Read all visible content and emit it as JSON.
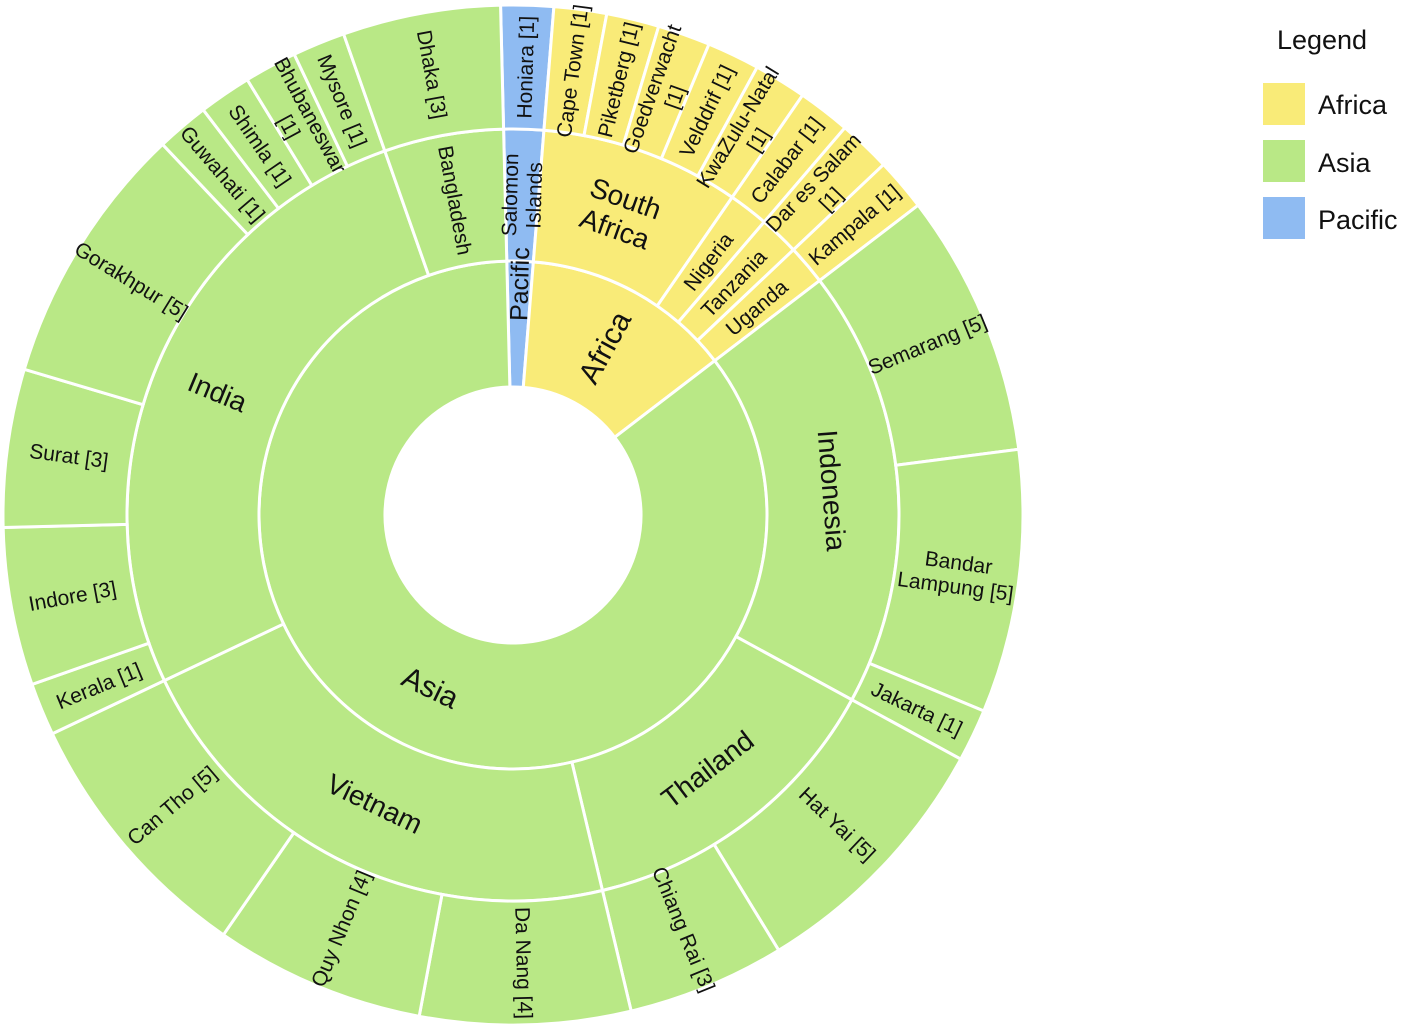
{
  "chart_data": {
    "type": "sunburst",
    "legend": {
      "title": "Legend",
      "placement": "top-right",
      "items": [
        {
          "name": "Africa",
          "color": "#f9eb78"
        },
        {
          "name": "Asia",
          "color": "#b9e886"
        },
        {
          "name": "Pacific",
          "color": "#8fbbf2"
        }
      ]
    },
    "colors": {
      "Africa": "#f9eb78",
      "Asia": "#b9e886",
      "Pacific": "#8fbbf2"
    },
    "regions": [
      {
        "name": "Pacific",
        "label": "Pacific",
        "countries": [
          {
            "name": "Salomon Islands",
            "label": "Salomon\nIslands",
            "cities": [
              {
                "name": "Honiara",
                "label": "Honiara [1]",
                "value": 1
              }
            ]
          }
        ]
      },
      {
        "name": "Africa",
        "label": "Africa",
        "countries": [
          {
            "name": "South Africa",
            "label": "South\nAfrica",
            "cities": [
              {
                "name": "Cape Town",
                "label": "Cape Town [1]",
                "value": 1
              },
              {
                "name": "Piketberg",
                "label": "Piketberg [1]",
                "value": 1
              },
              {
                "name": "Goedverwacht",
                "label": "Goedverwacht\n[1]",
                "value": 1
              },
              {
                "name": "Velddrif",
                "label": "Velddrif [1]",
                "value": 1
              },
              {
                "name": "KwaZulu-Natal",
                "label": "KwaZulu-Natal\n[1]",
                "value": 1
              }
            ]
          },
          {
            "name": "Nigeria",
            "label": "Nigeria",
            "cities": [
              {
                "name": "Calabar",
                "label": "Calabar [1]",
                "value": 1
              }
            ]
          },
          {
            "name": "Tanzania",
            "label": "Tanzania",
            "cities": [
              {
                "name": "Dar es Salam",
                "label": "Dar es Salam\n[1]",
                "value": 1
              }
            ]
          },
          {
            "name": "Uganda",
            "label": "Uganda",
            "cities": [
              {
                "name": "Kampala",
                "label": "Kampala [1]",
                "value": 1
              }
            ]
          }
        ]
      },
      {
        "name": "Asia",
        "label": "Asia",
        "countries": [
          {
            "name": "Indonesia",
            "label": "Indonesia",
            "cities": [
              {
                "name": "Semarang",
                "label": "Semarang [5]",
                "value": 5
              },
              {
                "name": "Bandar Lampung",
                "label": "Bandar\nLampung [5]",
                "value": 5
              },
              {
                "name": "Jakarta",
                "label": "Jakarta [1]",
                "value": 1
              }
            ]
          },
          {
            "name": "Thailand",
            "label": "Thailand",
            "cities": [
              {
                "name": "Hat Yai",
                "label": "Hat Yai [5]",
                "value": 5
              },
              {
                "name": "Chiang Rai",
                "label": "Chiang Rai [3]",
                "value": 3
              }
            ]
          },
          {
            "name": "Vietnam",
            "label": "Vietnam",
            "cities": [
              {
                "name": "Da Nang",
                "label": "Da Nang [4]",
                "value": 4
              },
              {
                "name": "Quy Nhon",
                "label": "Quy Nhon [4]",
                "value": 4
              },
              {
                "name": "Can Tho",
                "label": "Can Tho [5]",
                "value": 5
              }
            ]
          },
          {
            "name": "India",
            "label": "India",
            "cities": [
              {
                "name": "Kerala",
                "label": "Kerala [1]",
                "value": 1
              },
              {
                "name": "Indore",
                "label": "Indore [3]",
                "value": 3
              },
              {
                "name": "Surat",
                "label": "Surat [3]",
                "value": 3
              },
              {
                "name": "Gorakhpur",
                "label": "Gorakhpur [5]",
                "value": 5
              },
              {
                "name": "Guwahati",
                "label": "Guwahati [1]",
                "value": 1
              },
              {
                "name": "Shimla",
                "label": "Shimla [1]",
                "value": 1
              },
              {
                "name": "Bhubaneswar",
                "label": "Bhubaneswar\n[1]",
                "value": 1
              },
              {
                "name": "Mysore",
                "label": "Mysore [1]",
                "value": 1
              }
            ]
          },
          {
            "name": "Bangladesh",
            "label": "Bangladesh",
            "cities": [
              {
                "name": "Dhaka",
                "label": "Dhaka [3]",
                "value": 3
              }
            ]
          }
        ]
      }
    ]
  }
}
